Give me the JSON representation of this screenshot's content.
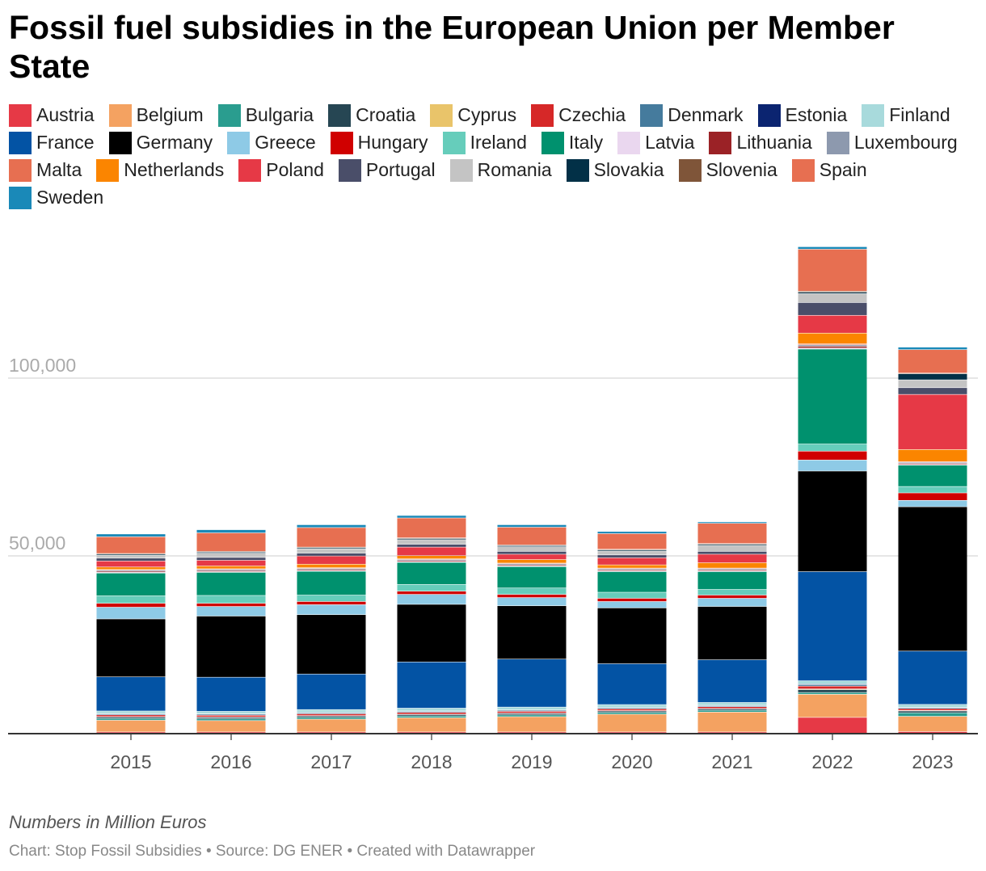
{
  "title": "Fossil fuel subsidies in the European Union per Member State",
  "note": "Numbers in Million Euros",
  "credit": "Chart: Stop Fossil Subsidies • Source: DG ENER • Created with Datawrapper",
  "legend": [
    {
      "name": "Austria",
      "color": "#e63946"
    },
    {
      "name": "Belgium",
      "color": "#f4a261"
    },
    {
      "name": "Bulgaria",
      "color": "#2a9d8f"
    },
    {
      "name": "Croatia",
      "color": "#264653"
    },
    {
      "name": "Cyprus",
      "color": "#e9c46a"
    },
    {
      "name": "Czechia",
      "color": "#d62828"
    },
    {
      "name": "Denmark",
      "color": "#457b9d"
    },
    {
      "name": "Estonia",
      "color": "#0b2470"
    },
    {
      "name": "Finland",
      "color": "#a8dadc"
    },
    {
      "name": "France",
      "color": "#0353a4"
    },
    {
      "name": "Germany",
      "color": "#000000"
    },
    {
      "name": "Greece",
      "color": "#8ecae6"
    },
    {
      "name": "Hungary",
      "color": "#d00000"
    },
    {
      "name": "Ireland",
      "color": "#66cdbb"
    },
    {
      "name": "Italy",
      "color": "#00916e"
    },
    {
      "name": "Latvia",
      "color": "#ead7ef"
    },
    {
      "name": "Lithuania",
      "color": "#9b2226"
    },
    {
      "name": "Luxembourg",
      "color": "#8d99ae"
    },
    {
      "name": "Malta",
      "color": "#e76f51"
    },
    {
      "name": "Netherlands",
      "color": "#fb8500"
    },
    {
      "name": "Poland",
      "color": "#e63946"
    },
    {
      "name": "Portugal",
      "color": "#4a4e69"
    },
    {
      "name": "Romania",
      "color": "#c4c4c4"
    },
    {
      "name": "Slovakia",
      "color": "#023047"
    },
    {
      "name": "Slovenia",
      "color": "#7f5539"
    },
    {
      "name": "Spain",
      "color": "#e76f51"
    },
    {
      "name": "Sweden",
      "color": "#1a89b8"
    }
  ],
  "chart_data": {
    "type": "bar",
    "stacked": true,
    "title": "Fossil fuel subsidies in the European Union per Member State",
    "xlabel": "",
    "ylabel": "Numbers in Million Euros",
    "ylim": [
      0,
      137000
    ],
    "yticks": [
      50000,
      100000
    ],
    "ytick_labels": [
      "50,000",
      "100,000"
    ],
    "grid": true,
    "legend_position": "top",
    "categories": [
      "2015",
      "2016",
      "2017",
      "2018",
      "2019",
      "2020",
      "2021",
      "2022",
      "2023"
    ],
    "series": [
      {
        "name": "Austria",
        "values": [
          400,
          400,
          400,
          400,
          400,
          400,
          400,
          4500,
          500
        ]
      },
      {
        "name": "Belgium",
        "values": [
          3300,
          3200,
          3600,
          4000,
          4300,
          5000,
          5600,
          6500,
          4300
        ]
      },
      {
        "name": "Bulgaria",
        "values": [
          500,
          500,
          500,
          500,
          500,
          500,
          500,
          500,
          1000
        ]
      },
      {
        "name": "Croatia",
        "values": [
          400,
          400,
          400,
          400,
          400,
          400,
          400,
          800,
          500
        ]
      },
      {
        "name": "Cyprus",
        "values": [
          100,
          100,
          100,
          100,
          100,
          100,
          100,
          200,
          150
        ]
      },
      {
        "name": "Czechia",
        "values": [
          500,
          500,
          500,
          500,
          500,
          500,
          500,
          800,
          500
        ]
      },
      {
        "name": "Denmark",
        "values": [
          300,
          300,
          300,
          300,
          300,
          300,
          300,
          400,
          300
        ]
      },
      {
        "name": "Estonia",
        "values": [
          100,
          100,
          100,
          100,
          100,
          100,
          100,
          200,
          100
        ]
      },
      {
        "name": "Finland",
        "values": [
          700,
          700,
          800,
          800,
          800,
          800,
          800,
          900,
          800
        ]
      },
      {
        "name": "France",
        "values": [
          9600,
          9600,
          10000,
          13000,
          13500,
          11500,
          12000,
          30700,
          15000
        ]
      },
      {
        "name": "Germany",
        "values": [
          16300,
          17200,
          16700,
          16200,
          15000,
          15700,
          15000,
          28300,
          40600
        ]
      },
      {
        "name": "Greece",
        "values": [
          3300,
          2700,
          2800,
          2800,
          2300,
          1800,
          2300,
          3100,
          1800
        ]
      },
      {
        "name": "Hungary",
        "values": [
          1100,
          900,
          900,
          900,
          900,
          900,
          900,
          2500,
          2100
        ]
      },
      {
        "name": "Ireland",
        "values": [
          2100,
          2200,
          1800,
          1900,
          1800,
          1700,
          1600,
          2000,
          1800
        ]
      },
      {
        "name": "Italy",
        "values": [
          6400,
          6500,
          6700,
          6200,
          6000,
          5800,
          5000,
          26700,
          6000
        ]
      },
      {
        "name": "Latvia",
        "values": [
          200,
          200,
          200,
          200,
          200,
          200,
          200,
          300,
          200
        ]
      },
      {
        "name": "Lithuania",
        "values": [
          300,
          300,
          300,
          300,
          300,
          300,
          300,
          500,
          300
        ]
      },
      {
        "name": "Luxembourg",
        "values": [
          300,
          300,
          300,
          300,
          300,
          300,
          300,
          400,
          300
        ]
      },
      {
        "name": "Malta",
        "values": [
          200,
          200,
          200,
          200,
          200,
          200,
          200,
          300,
          200
        ]
      },
      {
        "name": "Netherlands",
        "values": [
          700,
          800,
          1000,
          900,
          1000,
          900,
          1500,
          3000,
          3400
        ]
      },
      {
        "name": "Poland",
        "values": [
          1700,
          1600,
          2300,
          2400,
          1500,
          2000,
          2400,
          5000,
          15500
        ]
      },
      {
        "name": "Portugal",
        "values": [
          800,
          800,
          800,
          800,
          800,
          800,
          800,
          3600,
          1900
        ]
      },
      {
        "name": "Romania",
        "values": [
          800,
          1200,
          1200,
          1300,
          1300,
          1100,
          1700,
          2500,
          2200
        ]
      },
      {
        "name": "Slovakia",
        "values": [
          300,
          300,
          300,
          300,
          300,
          300,
          300,
          400,
          1700
        ]
      },
      {
        "name": "Slovenia",
        "values": [
          200,
          200,
          200,
          200,
          200,
          200,
          200,
          300,
          200
        ]
      },
      {
        "name": "Spain",
        "values": [
          4700,
          5200,
          5500,
          5600,
          5000,
          4400,
          5700,
          11800,
          6600
        ]
      },
      {
        "name": "Sweden",
        "values": [
          800,
          900,
          800,
          700,
          700,
          600,
          400,
          700,
          700
        ]
      }
    ]
  }
}
